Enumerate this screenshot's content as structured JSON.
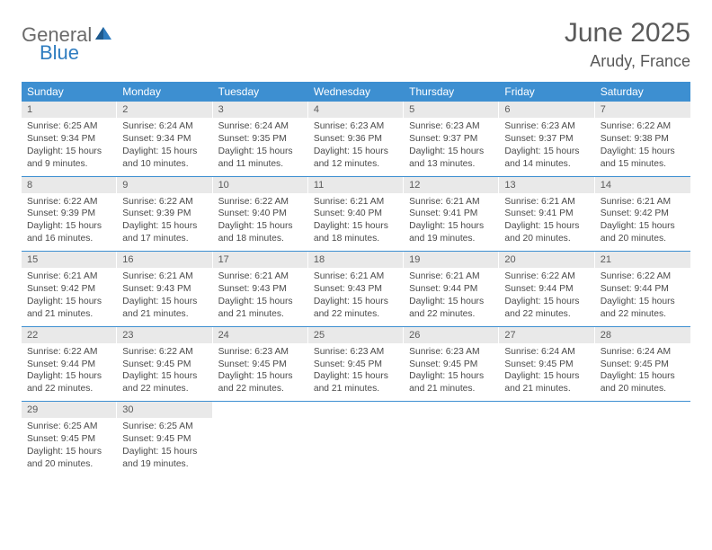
{
  "logo": {
    "general": "General",
    "blue": "Blue"
  },
  "title": "June 2025",
  "location": "Arudy, France",
  "weekdays": [
    "Sunday",
    "Monday",
    "Tuesday",
    "Wednesday",
    "Thursday",
    "Friday",
    "Saturday"
  ],
  "header_bg": "#3d8fd1",
  "header_text": "#ffffff",
  "daynum_bg": "#e9e9e9",
  "border_color": "#3d8fd1",
  "weeks": [
    [
      {
        "num": "1",
        "sunrise": "Sunrise: 6:25 AM",
        "sunset": "Sunset: 9:34 PM",
        "daylight1": "Daylight: 15 hours",
        "daylight2": "and 9 minutes."
      },
      {
        "num": "2",
        "sunrise": "Sunrise: 6:24 AM",
        "sunset": "Sunset: 9:34 PM",
        "daylight1": "Daylight: 15 hours",
        "daylight2": "and 10 minutes."
      },
      {
        "num": "3",
        "sunrise": "Sunrise: 6:24 AM",
        "sunset": "Sunset: 9:35 PM",
        "daylight1": "Daylight: 15 hours",
        "daylight2": "and 11 minutes."
      },
      {
        "num": "4",
        "sunrise": "Sunrise: 6:23 AM",
        "sunset": "Sunset: 9:36 PM",
        "daylight1": "Daylight: 15 hours",
        "daylight2": "and 12 minutes."
      },
      {
        "num": "5",
        "sunrise": "Sunrise: 6:23 AM",
        "sunset": "Sunset: 9:37 PM",
        "daylight1": "Daylight: 15 hours",
        "daylight2": "and 13 minutes."
      },
      {
        "num": "6",
        "sunrise": "Sunrise: 6:23 AM",
        "sunset": "Sunset: 9:37 PM",
        "daylight1": "Daylight: 15 hours",
        "daylight2": "and 14 minutes."
      },
      {
        "num": "7",
        "sunrise": "Sunrise: 6:22 AM",
        "sunset": "Sunset: 9:38 PM",
        "daylight1": "Daylight: 15 hours",
        "daylight2": "and 15 minutes."
      }
    ],
    [
      {
        "num": "8",
        "sunrise": "Sunrise: 6:22 AM",
        "sunset": "Sunset: 9:39 PM",
        "daylight1": "Daylight: 15 hours",
        "daylight2": "and 16 minutes."
      },
      {
        "num": "9",
        "sunrise": "Sunrise: 6:22 AM",
        "sunset": "Sunset: 9:39 PM",
        "daylight1": "Daylight: 15 hours",
        "daylight2": "and 17 minutes."
      },
      {
        "num": "10",
        "sunrise": "Sunrise: 6:22 AM",
        "sunset": "Sunset: 9:40 PM",
        "daylight1": "Daylight: 15 hours",
        "daylight2": "and 18 minutes."
      },
      {
        "num": "11",
        "sunrise": "Sunrise: 6:21 AM",
        "sunset": "Sunset: 9:40 PM",
        "daylight1": "Daylight: 15 hours",
        "daylight2": "and 18 minutes."
      },
      {
        "num": "12",
        "sunrise": "Sunrise: 6:21 AM",
        "sunset": "Sunset: 9:41 PM",
        "daylight1": "Daylight: 15 hours",
        "daylight2": "and 19 minutes."
      },
      {
        "num": "13",
        "sunrise": "Sunrise: 6:21 AM",
        "sunset": "Sunset: 9:41 PM",
        "daylight1": "Daylight: 15 hours",
        "daylight2": "and 20 minutes."
      },
      {
        "num": "14",
        "sunrise": "Sunrise: 6:21 AM",
        "sunset": "Sunset: 9:42 PM",
        "daylight1": "Daylight: 15 hours",
        "daylight2": "and 20 minutes."
      }
    ],
    [
      {
        "num": "15",
        "sunrise": "Sunrise: 6:21 AM",
        "sunset": "Sunset: 9:42 PM",
        "daylight1": "Daylight: 15 hours",
        "daylight2": "and 21 minutes."
      },
      {
        "num": "16",
        "sunrise": "Sunrise: 6:21 AM",
        "sunset": "Sunset: 9:43 PM",
        "daylight1": "Daylight: 15 hours",
        "daylight2": "and 21 minutes."
      },
      {
        "num": "17",
        "sunrise": "Sunrise: 6:21 AM",
        "sunset": "Sunset: 9:43 PM",
        "daylight1": "Daylight: 15 hours",
        "daylight2": "and 21 minutes."
      },
      {
        "num": "18",
        "sunrise": "Sunrise: 6:21 AM",
        "sunset": "Sunset: 9:43 PM",
        "daylight1": "Daylight: 15 hours",
        "daylight2": "and 22 minutes."
      },
      {
        "num": "19",
        "sunrise": "Sunrise: 6:21 AM",
        "sunset": "Sunset: 9:44 PM",
        "daylight1": "Daylight: 15 hours",
        "daylight2": "and 22 minutes."
      },
      {
        "num": "20",
        "sunrise": "Sunrise: 6:22 AM",
        "sunset": "Sunset: 9:44 PM",
        "daylight1": "Daylight: 15 hours",
        "daylight2": "and 22 minutes."
      },
      {
        "num": "21",
        "sunrise": "Sunrise: 6:22 AM",
        "sunset": "Sunset: 9:44 PM",
        "daylight1": "Daylight: 15 hours",
        "daylight2": "and 22 minutes."
      }
    ],
    [
      {
        "num": "22",
        "sunrise": "Sunrise: 6:22 AM",
        "sunset": "Sunset: 9:44 PM",
        "daylight1": "Daylight: 15 hours",
        "daylight2": "and 22 minutes."
      },
      {
        "num": "23",
        "sunrise": "Sunrise: 6:22 AM",
        "sunset": "Sunset: 9:45 PM",
        "daylight1": "Daylight: 15 hours",
        "daylight2": "and 22 minutes."
      },
      {
        "num": "24",
        "sunrise": "Sunrise: 6:23 AM",
        "sunset": "Sunset: 9:45 PM",
        "daylight1": "Daylight: 15 hours",
        "daylight2": "and 22 minutes."
      },
      {
        "num": "25",
        "sunrise": "Sunrise: 6:23 AM",
        "sunset": "Sunset: 9:45 PM",
        "daylight1": "Daylight: 15 hours",
        "daylight2": "and 21 minutes."
      },
      {
        "num": "26",
        "sunrise": "Sunrise: 6:23 AM",
        "sunset": "Sunset: 9:45 PM",
        "daylight1": "Daylight: 15 hours",
        "daylight2": "and 21 minutes."
      },
      {
        "num": "27",
        "sunrise": "Sunrise: 6:24 AM",
        "sunset": "Sunset: 9:45 PM",
        "daylight1": "Daylight: 15 hours",
        "daylight2": "and 21 minutes."
      },
      {
        "num": "28",
        "sunrise": "Sunrise: 6:24 AM",
        "sunset": "Sunset: 9:45 PM",
        "daylight1": "Daylight: 15 hours",
        "daylight2": "and 20 minutes."
      }
    ],
    [
      {
        "num": "29",
        "sunrise": "Sunrise: 6:25 AM",
        "sunset": "Sunset: 9:45 PM",
        "daylight1": "Daylight: 15 hours",
        "daylight2": "and 20 minutes."
      },
      {
        "num": "30",
        "sunrise": "Sunrise: 6:25 AM",
        "sunset": "Sunset: 9:45 PM",
        "daylight1": "Daylight: 15 hours",
        "daylight2": "and 19 minutes."
      },
      null,
      null,
      null,
      null,
      null
    ]
  ]
}
